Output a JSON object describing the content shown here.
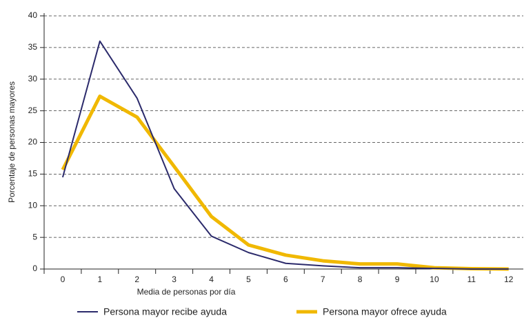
{
  "chart_data": {
    "type": "line",
    "categories": [
      "0",
      "1",
      "2",
      "3",
      "4",
      "5",
      "6",
      "7",
      "8",
      "9",
      "10",
      "11",
      "12"
    ],
    "xlabel": "Media de personas por día",
    "ylabel": "Porcentaje de personas mayores",
    "ylim": [
      0,
      40
    ],
    "yticks": [
      0,
      5,
      10,
      15,
      20,
      25,
      30,
      35,
      40
    ],
    "grid": true,
    "series": [
      {
        "name": "Persona mayor recibe ayuda",
        "color": "#2b2a6b",
        "values": [
          14.5,
          36,
          27,
          12.7,
          5.2,
          2.6,
          0.9,
          0.5,
          0.2,
          0.2,
          0.1,
          0,
          0
        ]
      },
      {
        "name": "Persona mayor ofrece ayuda",
        "color": "#f0b800",
        "values": [
          15.7,
          27.3,
          24,
          16.2,
          8.3,
          3.8,
          2.2,
          1.3,
          0.8,
          0.8,
          0.2,
          0.05,
          0
        ]
      }
    ]
  }
}
